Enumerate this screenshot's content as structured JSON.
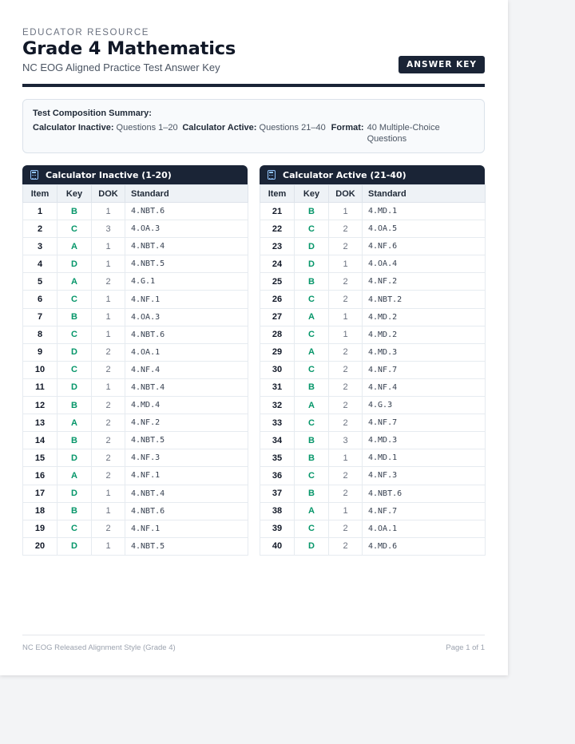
{
  "header": {
    "eyebrow": "EDUCATOR RESOURCE",
    "title": "Grade 4 Mathematics",
    "subtitle": "NC EOG Aligned Practice Test Answer Key",
    "badge": "ANSWER KEY"
  },
  "summary": {
    "title": "Test Composition Summary:",
    "items": [
      {
        "label": "Calculator Inactive:",
        "value": "Questions 1–20"
      },
      {
        "label": "Calculator Active:",
        "value": "Questions 21–40"
      },
      {
        "label": "Format:",
        "value": "40 Multiple-Choice Questions"
      }
    ]
  },
  "columns": [
    "Item",
    "Key",
    "DOK",
    "Standard"
  ],
  "icons": {
    "panel": "calculator-icon"
  },
  "colors": {
    "navy": "#1a2436",
    "key_green": "#059669"
  },
  "tables": [
    {
      "title": "Calculator Inactive (1-20)",
      "rows": [
        [
          "1",
          "B",
          "1",
          "4.NBT.6"
        ],
        [
          "2",
          "C",
          "3",
          "4.OA.3"
        ],
        [
          "3",
          "A",
          "1",
          "4.NBT.4"
        ],
        [
          "4",
          "D",
          "1",
          "4.NBT.5"
        ],
        [
          "5",
          "A",
          "2",
          "4.G.1"
        ],
        [
          "6",
          "C",
          "1",
          "4.NF.1"
        ],
        [
          "7",
          "B",
          "1",
          "4.OA.3"
        ],
        [
          "8",
          "C",
          "1",
          "4.NBT.6"
        ],
        [
          "9",
          "D",
          "2",
          "4.OA.1"
        ],
        [
          "10",
          "C",
          "2",
          "4.NF.4"
        ],
        [
          "11",
          "D",
          "1",
          "4.NBT.4"
        ],
        [
          "12",
          "B",
          "2",
          "4.MD.4"
        ],
        [
          "13",
          "A",
          "2",
          "4.NF.2"
        ],
        [
          "14",
          "B",
          "2",
          "4.NBT.5"
        ],
        [
          "15",
          "D",
          "2",
          "4.NF.3"
        ],
        [
          "16",
          "A",
          "2",
          "4.NF.1"
        ],
        [
          "17",
          "D",
          "1",
          "4.NBT.4"
        ],
        [
          "18",
          "B",
          "1",
          "4.NBT.6"
        ],
        [
          "19",
          "C",
          "2",
          "4.NF.1"
        ],
        [
          "20",
          "D",
          "1",
          "4.NBT.5"
        ]
      ]
    },
    {
      "title": "Calculator Active (21-40)",
      "rows": [
        [
          "21",
          "B",
          "1",
          "4.MD.1"
        ],
        [
          "22",
          "C",
          "2",
          "4.OA.5"
        ],
        [
          "23",
          "D",
          "2",
          "4.NF.6"
        ],
        [
          "24",
          "D",
          "1",
          "4.OA.4"
        ],
        [
          "25",
          "B",
          "2",
          "4.NF.2"
        ],
        [
          "26",
          "C",
          "2",
          "4.NBT.2"
        ],
        [
          "27",
          "A",
          "1",
          "4.MD.2"
        ],
        [
          "28",
          "C",
          "1",
          "4.MD.2"
        ],
        [
          "29",
          "A",
          "2",
          "4.MD.3"
        ],
        [
          "30",
          "C",
          "2",
          "4.NF.7"
        ],
        [
          "31",
          "B",
          "2",
          "4.NF.4"
        ],
        [
          "32",
          "A",
          "2",
          "4.G.3"
        ],
        [
          "33",
          "C",
          "2",
          "4.NF.7"
        ],
        [
          "34",
          "B",
          "3",
          "4.MD.3"
        ],
        [
          "35",
          "B",
          "1",
          "4.MD.1"
        ],
        [
          "36",
          "C",
          "2",
          "4.NF.3"
        ],
        [
          "37",
          "B",
          "2",
          "4.NBT.6"
        ],
        [
          "38",
          "A",
          "1",
          "4.NF.7"
        ],
        [
          "39",
          "C",
          "2",
          "4.OA.1"
        ],
        [
          "40",
          "D",
          "2",
          "4.MD.6"
        ]
      ]
    }
  ],
  "footer": {
    "left": "NC EOG Released Alignment Style (Grade 4)",
    "right": "Page 1 of 1"
  }
}
